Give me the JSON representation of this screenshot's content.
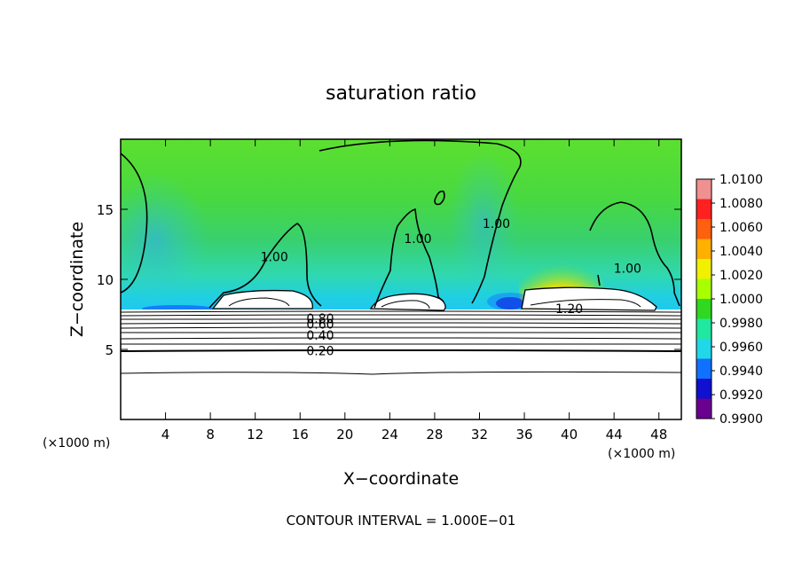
{
  "chart_data": {
    "type": "heatmap",
    "title": "saturation ratio",
    "xlabel": "X−coordinate",
    "ylabel": "Z−coordinate",
    "x_unit_left": "(×1000 m)",
    "x_unit_right": "(×1000 m)",
    "xlim": [
      0,
      50
    ],
    "ylim": [
      0,
      20
    ],
    "x_ticks": [
      4,
      8,
      12,
      16,
      20,
      24,
      28,
      32,
      36,
      40,
      44,
      48
    ],
    "y_ticks": [
      5,
      10,
      15
    ],
    "colorbar": {
      "min": 0.99,
      "max": 1.01,
      "labels": [
        "1.0100",
        "1.0080",
        "1.0060",
        "1.0040",
        "1.0020",
        "1.0000",
        "0.9980",
        "0.9960",
        "0.9940",
        "0.9920",
        "0.9900"
      ],
      "colors": [
        "#f09090",
        "#ff2020",
        "#ff6010",
        "#ffb000",
        "#f0f000",
        "#a8ff00",
        "#30d820",
        "#20e8a0",
        "#20d8e8",
        "#1070ff",
        "#1010d0",
        "#6a0090"
      ]
    },
    "contour_labels": [
      {
        "text": "1.00",
        "x": 13.7,
        "z": 11.6
      },
      {
        "text": "1.00",
        "x": 26.5,
        "z": 12.9
      },
      {
        "text": "1.00",
        "x": 33.5,
        "z": 14.0
      },
      {
        "text": "1.00",
        "x": 45.2,
        "z": 10.8
      },
      {
        "text": "1.20",
        "x": 40.0,
        "z": 7.9
      },
      {
        "text": "0.80",
        "x": 17.8,
        "z": 7.2
      },
      {
        "text": "0.60",
        "x": 17.8,
        "z": 6.8
      },
      {
        "text": "0.40",
        "x": 17.8,
        "z": 6.0
      },
      {
        "text": "0.20",
        "x": 17.8,
        "z": 4.9
      }
    ],
    "footer": "CONTOUR INTERVAL = 1.000E−01"
  }
}
